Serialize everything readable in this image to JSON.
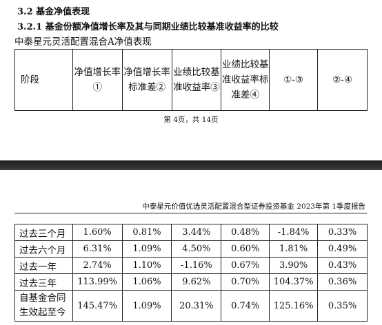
{
  "section": {
    "title": "3.2 基金净值表现",
    "subtitle": "3.2.1 基金份额净值增长率及其与同期业绩比较基准收益率的比较"
  },
  "table_caption": "中泰星元灵活配置混合A净值表现",
  "headers": [
    "阶段",
    "净值增长率①",
    "净值增长率标准差②",
    "业绩比较基准收益率③",
    "业绩比较基准收益率标准差④",
    "①-③",
    "②-④"
  ],
  "page_footer": "第 4页，共 14页",
  "report_header": "中泰星元价值优选灵活配置混合型证券投资基金 2023年第 1季度报告",
  "rows": [
    [
      "过去三个月",
      "1.60%",
      "0.81%",
      "3.44%",
      "0.48%",
      "-1.84%",
      "0.33%"
    ],
    [
      "过去六个月",
      "6.31%",
      "1.09%",
      "4.50%",
      "0.60%",
      "1.81%",
      "0.49%"
    ],
    [
      "过去一年",
      "2.74%",
      "1.10%",
      "-1.16%",
      "0.67%",
      "3.90%",
      "0.43%"
    ],
    [
      "过去三年",
      "113.99%",
      "1.06%",
      "9.62%",
      "0.70%",
      "104.37%",
      "0.36%"
    ],
    [
      "自基金合同生效起至今",
      "145.47%",
      "1.09%",
      "20.31%",
      "0.74%",
      "125.16%",
      "0.35%"
    ]
  ]
}
